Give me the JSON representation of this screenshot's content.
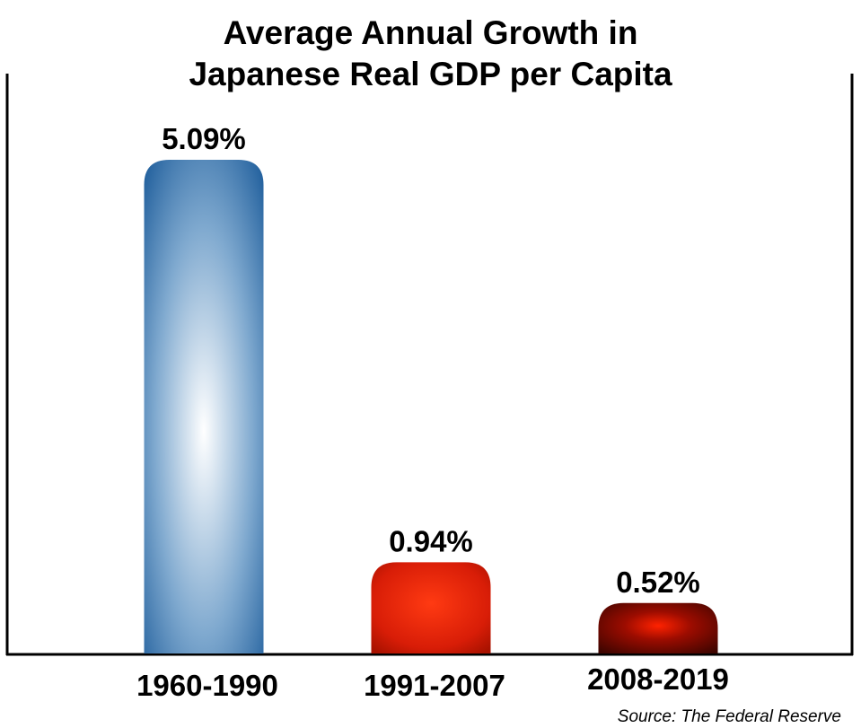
{
  "chart_data": {
    "type": "bar",
    "title_lines": [
      "Average Annual Growth in",
      "Japanese Real GDP per Capita"
    ],
    "categories": [
      "1960-1990",
      "1991-2007",
      "2008-2019"
    ],
    "values": [
      5.09,
      0.94,
      0.52
    ],
    "value_labels": [
      "5.09%",
      "0.94%",
      "0.52%"
    ],
    "ylim": [
      0,
      5.09
    ],
    "grid": false,
    "source": "Source: The Federal Reserve",
    "colors": [
      "#1f5f9e",
      "#e0210b",
      "#7a0a00"
    ]
  }
}
